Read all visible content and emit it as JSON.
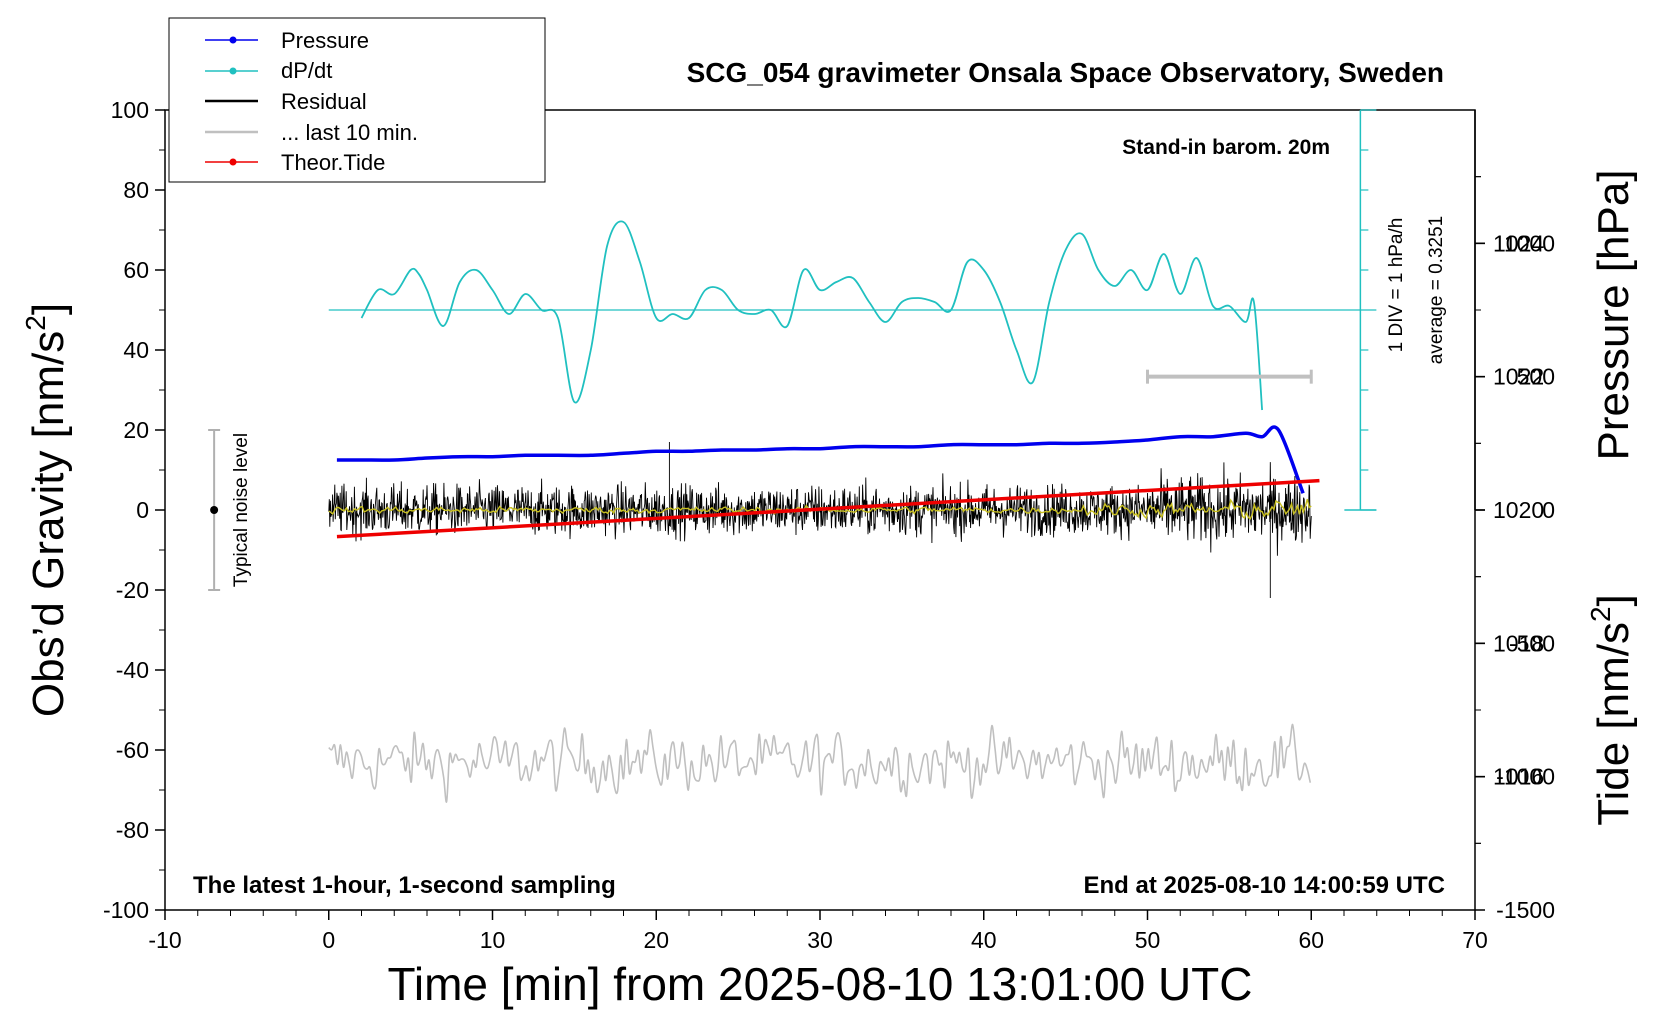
{
  "chart_data": {
    "type": "line",
    "title": "SCG_054 gravimeter Onsala Space Observatory, Sweden",
    "xlabel": "Time [min] from 2025-08-10 13:01:00 UTC",
    "ylabel_left": "Obs’d Gravity [nm/s²]",
    "ylabel_left_main": "Obs’d Gravity [nm/s",
    "ylabel_left_sup": "2",
    "ylabel_left_end": "]",
    "ylabel_right_pressure": "Pressure [hPa]",
    "ylabel_right_tide_main": "Tide [nm/s",
    "ylabel_right_tide_sup": "2",
    "ylabel_right_tide_end": "]",
    "xlim": [
      -10,
      70
    ],
    "ylim_left": [
      -100,
      100
    ],
    "ylim_pressure": [
      1014,
      1026
    ],
    "ylim_tide": [
      -1500,
      1500
    ],
    "x_ticks": [
      "-10",
      "0",
      "10",
      "20",
      "30",
      "40",
      "50",
      "60",
      "70"
    ],
    "y_ticks_left": [
      "100",
      "80",
      "60",
      "40",
      "20",
      "0",
      "-20",
      "-40",
      "-60",
      "-80",
      "-100"
    ],
    "y_ticks_pressure": [
      "1024",
      "1022",
      "1020",
      "1018",
      "1016"
    ],
    "y_ticks_tide": [
      "1000",
      "500",
      "0",
      "-500",
      "-1000",
      "-1500"
    ],
    "legend": [
      "Pressure",
      "dP/dt",
      "Residual",
      "... last 10 min.",
      "Theor.Tide"
    ],
    "legend_placement": "top-left",
    "colors": {
      "pressure": "#0000ee",
      "dpdt": "#20c0c0",
      "residual": "#000000",
      "last10": "#c0c0c0",
      "tide": "#ee0000",
      "smoothed": "#c8c020"
    },
    "annotations": {
      "barometer": "Stand-in barom. 20m",
      "div_scale": "1 DIV = 1 hPa/h",
      "average": "average = 0.3251",
      "noise": "Typical noise level",
      "bottom_left": "The latest 1-hour, 1-second sampling",
      "bottom_right": "End at 2025-08-10 14:00:59 UTC"
    },
    "noise_bar_range": [
      -20,
      20
    ],
    "last10_bar_range_min": [
      50,
      60
    ],
    "series": [
      {
        "name": "Pressure",
        "axis": "pressure",
        "x": [
          0.5,
          2,
          4,
          6,
          8,
          10,
          12,
          14,
          16,
          18,
          20,
          22,
          24,
          26,
          28,
          30,
          32,
          34,
          36,
          38,
          40,
          42,
          44,
          46,
          48,
          50,
          52,
          54,
          56,
          57,
          58,
          59.5
        ],
        "y": [
          1020.75,
          1020.75,
          1020.75,
          1020.78,
          1020.8,
          1020.8,
          1020.82,
          1020.82,
          1020.82,
          1020.85,
          1020.88,
          1020.88,
          1020.9,
          1020.9,
          1020.92,
          1020.92,
          1020.95,
          1020.95,
          1020.95,
          1020.98,
          1020.98,
          1020.98,
          1021.0,
          1021.0,
          1021.02,
          1021.05,
          1021.1,
          1021.1,
          1021.15,
          1021.1,
          1021.2,
          1020.25
        ]
      },
      {
        "name": "dP/dt",
        "axis": "left",
        "x": [
          2,
          3,
          4,
          5,
          5.5,
          6,
          7,
          8,
          9,
          10,
          11,
          12,
          13,
          14,
          15,
          16,
          17,
          18,
          19,
          20,
          21,
          22,
          23,
          24,
          25,
          26,
          27,
          28,
          29,
          30,
          31,
          32,
          33,
          34,
          35,
          36,
          37,
          38,
          39,
          40,
          41,
          42,
          43,
          44,
          45,
          46,
          47,
          48,
          49,
          50,
          51,
          52,
          53,
          54,
          55,
          56,
          56.5,
          57
        ],
        "y": [
          48,
          55,
          54,
          60,
          59,
          55,
          46,
          57,
          60,
          55,
          49,
          54,
          50,
          48,
          27,
          40,
          66,
          72,
          62,
          48,
          49,
          48,
          55,
          55,
          50,
          49,
          50,
          46,
          60,
          55,
          57,
          58,
          52,
          47,
          52,
          53,
          52,
          50,
          62,
          60,
          52,
          40,
          32,
          52,
          65,
          69,
          60,
          56,
          60,
          55,
          64,
          54,
          63,
          51,
          51,
          47,
          52,
          25
        ]
      },
      {
        "name": "Residual",
        "axis": "left",
        "x": [
          0,
          60
        ],
        "y": [
          0,
          0
        ],
        "amplitude_range": [
          -12,
          12
        ],
        "peak_max": 17,
        "peak_min": -22
      },
      {
        "name": "Theor.Tide",
        "axis": "tide",
        "x": [
          0.5,
          60.5
        ],
        "y": [
          -100,
          110
        ]
      },
      {
        "name": "... last 10 min.",
        "axis": "left",
        "x": [
          0,
          60
        ],
        "y_baseline": -63,
        "y_range": [
          -82,
          -50
        ]
      }
    ]
  }
}
